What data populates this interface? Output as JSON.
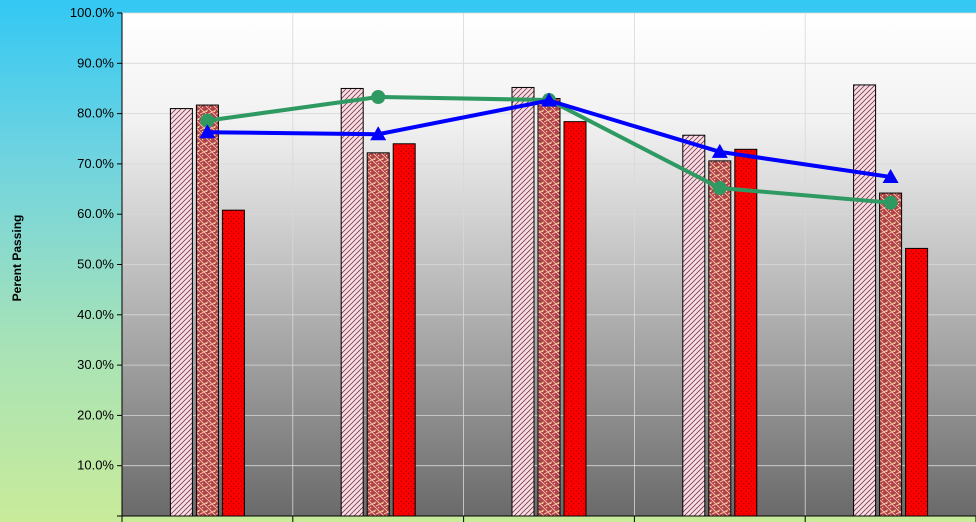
{
  "chart_data": {
    "type": "bar",
    "title": "",
    "xlabel": "",
    "ylabel": "Perent Passing",
    "ylim": [
      0,
      100
    ],
    "yticks": [
      "10.0%",
      "20.0%",
      "30.0%",
      "40.0%",
      "50.0%",
      "60.0%",
      "70.0%",
      "80.0%",
      "90.0%",
      "100.0%"
    ],
    "grid": true,
    "legend": "none",
    "categories": [
      "",
      "",
      "",
      "",
      ""
    ],
    "bar_series": [
      {
        "values": [
          81.0,
          85.0,
          85.2,
          75.7,
          85.7
        ],
        "color": "#f7dde4",
        "pattern": "diagonal-hatch"
      },
      {
        "values": [
          81.7,
          72.2,
          83.0,
          70.6,
          64.2
        ],
        "color": "#b0404c",
        "pattern": "weave"
      },
      {
        "values": [
          60.8,
          74.0,
          78.4,
          72.9,
          53.2
        ],
        "color": "#ff0000",
        "pattern": "dotted"
      }
    ],
    "line_series": [
      {
        "values": [
          78.6,
          83.3,
          82.7,
          65.2,
          62.3
        ],
        "color": "#2e9a62",
        "marker": "circle"
      },
      {
        "values": [
          76.3,
          75.9,
          82.6,
          72.4,
          67.4
        ],
        "color": "#0000ff",
        "marker": "triangle"
      }
    ]
  }
}
